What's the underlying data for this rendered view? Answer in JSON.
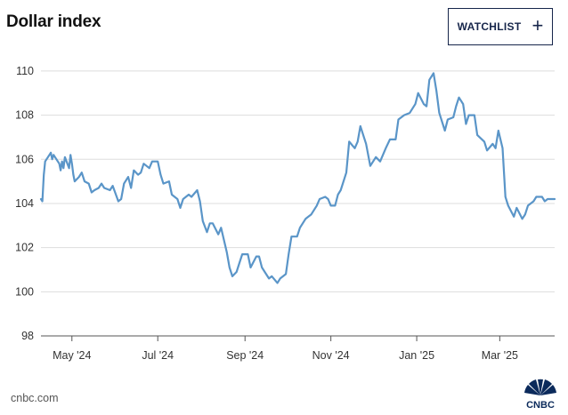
{
  "header": {
    "title": "Dollar index",
    "watchlist_label": "WATCHLIST",
    "watchlist_icon": "plus-icon"
  },
  "footer": {
    "source": "cnbc.com",
    "logo_text": "CNBC"
  },
  "colors": {
    "line": "#5a95c8",
    "grid": "#dddddd",
    "axis": "#555555",
    "button_border": "#16254a"
  },
  "chart_data": {
    "type": "line",
    "title": "Dollar index",
    "xlabel": "",
    "ylabel": "",
    "ylim": [
      98,
      110.8
    ],
    "yticks": [
      98,
      100,
      102,
      104,
      106,
      108,
      110
    ],
    "xlim": [
      "2024-04-09",
      "2025-04-09"
    ],
    "xticks": [
      {
        "date": "2024-05-01",
        "label": "May '24"
      },
      {
        "date": "2024-07-01",
        "label": "Jul '24"
      },
      {
        "date": "2024-09-01",
        "label": "Sep '24"
      },
      {
        "date": "2024-11-01",
        "label": "Nov '24"
      },
      {
        "date": "2025-01-01",
        "label": "Jan '25"
      },
      {
        "date": "2025-03-01",
        "label": "Mar '25"
      }
    ],
    "grid": true,
    "series": [
      {
        "x": [
          "2024-04-09",
          "2024-04-10",
          "2024-04-11",
          "2024-04-12",
          "2024-04-15",
          "2024-04-16",
          "2024-04-17",
          "2024-04-18",
          "2024-04-19",
          "2024-04-22",
          "2024-04-23",
          "2024-04-24",
          "2024-04-25",
          "2024-04-26",
          "2024-04-29",
          "2024-04-30",
          "2024-05-01",
          "2024-05-02",
          "2024-05-03",
          "2024-05-06",
          "2024-05-08",
          "2024-05-10",
          "2024-05-13",
          "2024-05-15",
          "2024-05-17",
          "2024-05-20",
          "2024-05-22",
          "2024-05-24",
          "2024-05-28",
          "2024-05-30",
          "2024-06-03",
          "2024-06-05",
          "2024-06-07",
          "2024-06-10",
          "2024-06-12",
          "2024-06-14",
          "2024-06-17",
          "2024-06-19",
          "2024-06-21",
          "2024-06-25",
          "2024-06-27",
          "2024-07-01",
          "2024-07-03",
          "2024-07-05",
          "2024-07-09",
          "2024-07-11",
          "2024-07-15",
          "2024-07-17",
          "2024-07-19",
          "2024-07-23",
          "2024-07-25",
          "2024-07-29",
          "2024-07-31",
          "2024-08-02",
          "2024-08-05",
          "2024-08-07",
          "2024-08-09",
          "2024-08-13",
          "2024-08-15",
          "2024-08-19",
          "2024-08-21",
          "2024-08-23",
          "2024-08-26",
          "2024-08-28",
          "2024-08-30",
          "2024-09-03",
          "2024-09-05",
          "2024-09-09",
          "2024-09-11",
          "2024-09-13",
          "2024-09-16",
          "2024-09-18",
          "2024-09-20",
          "2024-09-24",
          "2024-09-26",
          "2024-09-30",
          "2024-10-02",
          "2024-10-04",
          "2024-10-08",
          "2024-10-10",
          "2024-10-14",
          "2024-10-16",
          "2024-10-18",
          "2024-10-22",
          "2024-10-24",
          "2024-10-28",
          "2024-10-30",
          "2024-11-01",
          "2024-11-04",
          "2024-11-06",
          "2024-11-08",
          "2024-11-12",
          "2024-11-14",
          "2024-11-18",
          "2024-11-20",
          "2024-11-22",
          "2024-11-26",
          "2024-11-29",
          "2024-12-03",
          "2024-12-06",
          "2024-12-10",
          "2024-12-13",
          "2024-12-17",
          "2024-12-19",
          "2024-12-23",
          "2024-12-27",
          "2024-12-31",
          "2025-01-02",
          "2025-01-06",
          "2025-01-08",
          "2025-01-10",
          "2025-01-13",
          "2025-01-15",
          "2025-01-17",
          "2025-01-21",
          "2025-01-23",
          "2025-01-27",
          "2025-01-29",
          "2025-01-31",
          "2025-02-03",
          "2025-02-05",
          "2025-02-07",
          "2025-02-11",
          "2025-02-13",
          "2025-02-18",
          "2025-02-20",
          "2025-02-24",
          "2025-02-26",
          "2025-02-28",
          "2025-03-03",
          "2025-03-05",
          "2025-03-07",
          "2025-03-11",
          "2025-03-13",
          "2025-03-17",
          "2025-03-19",
          "2025-03-21",
          "2025-03-25",
          "2025-03-27",
          "2025-03-31",
          "2025-04-02",
          "2025-04-04",
          "2025-04-07",
          "2025-04-09"
        ],
        "values": [
          104.2,
          104.1,
          105.3,
          105.9,
          106.2,
          106.3,
          106.0,
          106.2,
          106.1,
          105.8,
          105.5,
          105.9,
          105.6,
          106.1,
          105.6,
          106.2,
          105.8,
          105.3,
          105.0,
          105.2,
          105.4,
          105.0,
          104.9,
          104.5,
          104.6,
          104.7,
          104.9,
          104.7,
          104.6,
          104.8,
          104.1,
          104.2,
          104.9,
          105.2,
          104.7,
          105.5,
          105.3,
          105.4,
          105.8,
          105.6,
          105.9,
          105.9,
          105.3,
          104.9,
          105.0,
          104.4,
          104.2,
          103.8,
          104.2,
          104.4,
          104.3,
          104.6,
          104.1,
          103.2,
          102.7,
          103.1,
          103.1,
          102.6,
          102.9,
          101.8,
          101.1,
          100.7,
          100.9,
          101.3,
          101.7,
          101.7,
          101.1,
          101.6,
          101.6,
          101.1,
          100.8,
          100.6,
          100.7,
          100.4,
          100.6,
          100.8,
          101.7,
          102.5,
          102.5,
          102.9,
          103.3,
          103.4,
          103.5,
          103.9,
          104.2,
          104.3,
          104.2,
          103.9,
          103.9,
          104.4,
          104.6,
          105.4,
          106.8,
          106.5,
          106.8,
          107.5,
          106.7,
          105.7,
          106.1,
          105.9,
          106.5,
          106.9,
          106.9,
          107.8,
          108.0,
          108.1,
          108.5,
          109.0,
          108.5,
          108.4,
          109.6,
          109.9,
          109.1,
          108.1,
          107.3,
          107.8,
          107.9,
          108.4,
          108.8,
          108.5,
          107.6,
          108.0,
          108.0,
          107.1,
          106.8,
          106.4,
          106.7,
          106.5,
          107.3,
          106.5,
          104.3,
          103.9,
          103.4,
          103.8,
          103.3,
          103.5,
          103.9,
          104.1,
          104.3,
          104.3,
          104.1,
          104.2,
          104.2,
          104.2
        ]
      }
    ]
  }
}
